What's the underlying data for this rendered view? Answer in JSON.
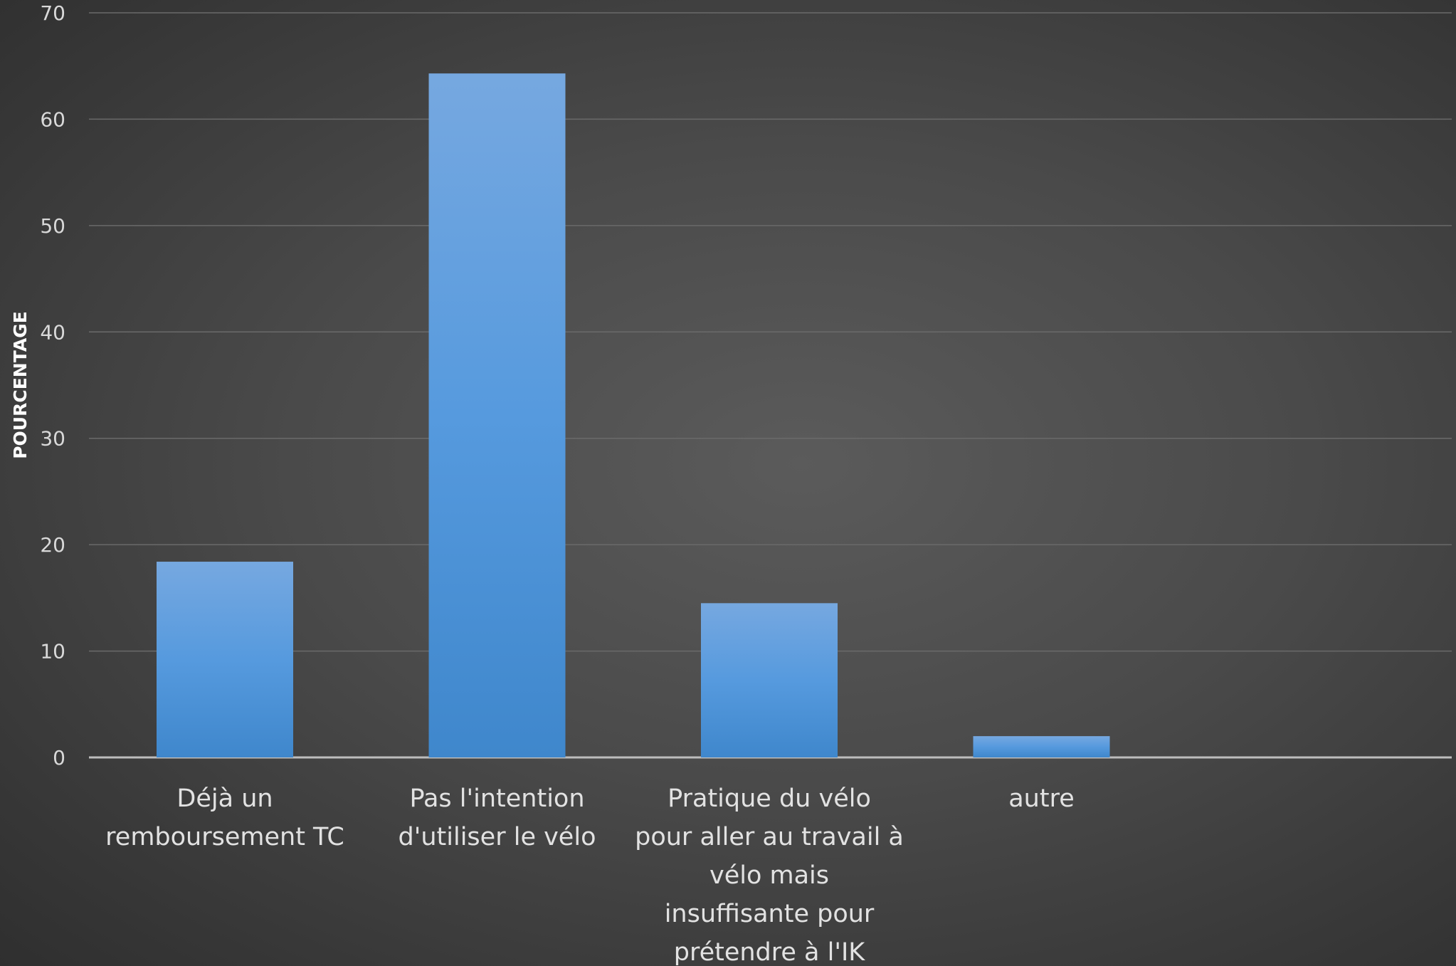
{
  "chart_data": {
    "type": "bar",
    "categories": [
      [
        "Déjà un",
        "remboursement TC"
      ],
      [
        "Pas l'intention",
        "d'utiliser le vélo"
      ],
      [
        "Pratique du vélo",
        "pour aller au travail à",
        "vélo mais",
        "insuffisante pour",
        "prétendre à l'IK"
      ],
      [
        "autre"
      ]
    ],
    "values": [
      18.4,
      64.3,
      14.5,
      2.0
    ],
    "title": "",
    "xlabel": "",
    "ylabel": "POURCENTAGE",
    "ylim": [
      0,
      70
    ],
    "yticks": [
      0,
      10,
      20,
      30,
      40,
      50,
      60,
      70
    ],
    "grid": true,
    "legend": "none",
    "colors": {
      "bar_top": "#76a8e0",
      "bar_mid": "#569ade",
      "bar_bottom": "#3f87cc",
      "background": "#474747"
    }
  }
}
